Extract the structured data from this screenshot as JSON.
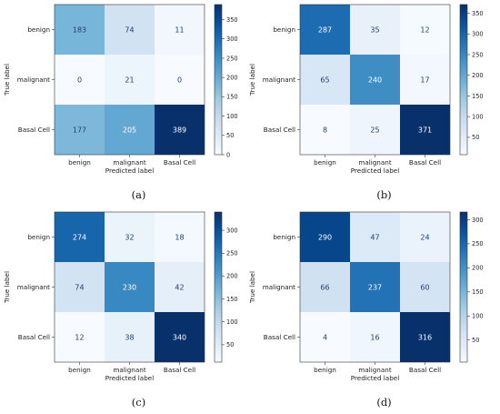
{
  "chart_data": [
    {
      "type": "heatmap",
      "caption": "(a)",
      "xlabel": "Predicted label",
      "ylabel": "True label",
      "x_categories": [
        "benign",
        "malignant",
        "Basal Cell"
      ],
      "y_categories": [
        "benign",
        "malignant",
        "Basal Cell"
      ],
      "values": [
        [
          183,
          74,
          11
        ],
        [
          0,
          21,
          0
        ],
        [
          177,
          205,
          389
        ]
      ],
      "colorbar": {
        "range": [
          0,
          389
        ],
        "ticks": [
          0,
          50,
          100,
          150,
          200,
          250,
          300,
          350
        ]
      }
    },
    {
      "type": "heatmap",
      "caption": "(b)",
      "xlabel": "Predicted label",
      "ylabel": "True label",
      "x_categories": [
        "benign",
        "malignant",
        "Basal Cell"
      ],
      "y_categories": [
        "benign",
        "malignant",
        "Basal Cell"
      ],
      "values": [
        [
          287,
          35,
          12
        ],
        [
          65,
          240,
          17
        ],
        [
          8,
          25,
          371
        ]
      ],
      "colorbar": {
        "range": [
          8,
          371
        ],
        "ticks": [
          50,
          100,
          150,
          200,
          250,
          300,
          350
        ]
      }
    },
    {
      "type": "heatmap",
      "caption": "(c)",
      "xlabel": "Predicted label",
      "ylabel": "True label",
      "x_categories": [
        "benign",
        "malignant",
        "Basal Cell"
      ],
      "y_categories": [
        "benign",
        "malignant",
        "Basal Cell"
      ],
      "values": [
        [
          274,
          32,
          18
        ],
        [
          74,
          230,
          42
        ],
        [
          12,
          38,
          340
        ]
      ],
      "colorbar": {
        "range": [
          12,
          340
        ],
        "ticks": [
          50,
          100,
          150,
          200,
          250,
          300
        ]
      }
    },
    {
      "type": "heatmap",
      "caption": "(d)",
      "xlabel": "Predicted label",
      "ylabel": "True label",
      "x_categories": [
        "benign",
        "malignant",
        "Basal Cell"
      ],
      "y_categories": [
        "benign",
        "malignant",
        "Basal Cell"
      ],
      "values": [
        [
          290,
          47,
          24
        ],
        [
          66,
          237,
          60
        ],
        [
          4,
          16,
          316
        ]
      ],
      "colorbar": {
        "range": [
          4,
          316
        ],
        "ticks": [
          50,
          100,
          150,
          200,
          250,
          300
        ]
      }
    }
  ],
  "colormap": "Blues"
}
